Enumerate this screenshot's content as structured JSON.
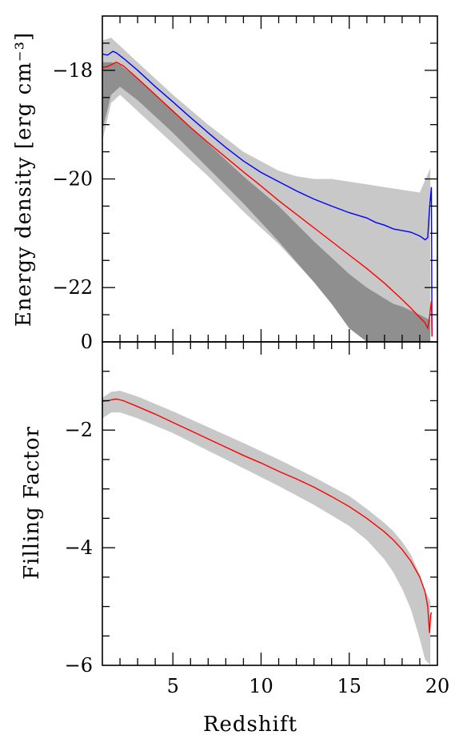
{
  "chart_data": [
    {
      "type": "line",
      "panel": "top",
      "xlabel": "Redshift",
      "ylabel": "Energy density [erg cm⁻³]",
      "xlim": [
        1.0,
        20.0
      ],
      "ylim": [
        -23.0,
        -17.0
      ],
      "yticks": [
        -18,
        -20,
        -22
      ],
      "yticks_labels": [
        "−18",
        "−20",
        "−22"
      ],
      "bottom_edge_label": "0",
      "grid": false,
      "legend": "none",
      "bands": [
        {
          "color": "#c8c8c8",
          "x": [
            1.0,
            1.5,
            2.0,
            3.0,
            5.0,
            7.0,
            9.0,
            11.0,
            12.0,
            13.0,
            14.0,
            15.0,
            16.0,
            17.0,
            18.0,
            19.0,
            19.6
          ],
          "upper": [
            -17.45,
            -17.4,
            -17.55,
            -17.85,
            -18.45,
            -19.0,
            -19.5,
            -19.85,
            -19.95,
            -20.0,
            -20.0,
            -20.05,
            -20.1,
            -20.15,
            -20.2,
            -20.25,
            -19.8
          ],
          "lower": [
            -19.3,
            -18.6,
            -18.45,
            -18.75,
            -19.35,
            -19.95,
            -20.6,
            -21.2,
            -21.55,
            -21.9,
            -22.15,
            -22.45,
            -22.7,
            -22.95,
            -23.0,
            -23.0,
            -23.0
          ]
        },
        {
          "color": "#8f8f8f",
          "x": [
            1.0,
            1.5,
            2.0,
            3.0,
            5.0,
            7.0,
            9.0,
            11.0,
            13.0,
            14.0,
            15.0,
            16.0,
            17.0,
            17.5,
            18.0,
            19.0,
            19.6
          ],
          "upper": [
            -17.85,
            -17.85,
            -17.9,
            -18.15,
            -18.75,
            -19.35,
            -19.95,
            -20.5,
            -21.15,
            -21.45,
            -21.75,
            -22.0,
            -22.2,
            -22.3,
            -22.35,
            -22.5,
            -22.6
          ],
          "lower": [
            -19.1,
            -18.45,
            -18.3,
            -18.55,
            -19.15,
            -19.8,
            -20.45,
            -21.15,
            -21.9,
            -22.3,
            -22.75,
            -23.0,
            -23.0,
            -23.0,
            -23.0,
            -23.0,
            -23.0
          ]
        }
      ],
      "series": [
        {
          "color": "#0000ff",
          "x": [
            1.0,
            1.3,
            1.6,
            1.8,
            2.2,
            3.0,
            4.0,
            5.0,
            6.0,
            7.0,
            8.0,
            9.0,
            10.0,
            11.0,
            12.0,
            13.0,
            14.0,
            15.0,
            16.0,
            16.5,
            17.0,
            17.5,
            18.0,
            18.5,
            19.0,
            19.3,
            19.45,
            19.55,
            19.62,
            19.66,
            19.69
          ],
          "y": [
            -17.7,
            -17.72,
            -17.65,
            -17.68,
            -17.78,
            -18.0,
            -18.3,
            -18.58,
            -18.87,
            -19.15,
            -19.42,
            -19.67,
            -19.88,
            -20.05,
            -20.22,
            -20.37,
            -20.5,
            -20.62,
            -20.72,
            -20.8,
            -20.85,
            -20.92,
            -20.95,
            -20.98,
            -21.05,
            -21.12,
            -21.08,
            -20.55,
            -20.3,
            -20.15,
            -22.9
          ]
        },
        {
          "color": "#ff0000",
          "x": [
            1.0,
            1.3,
            1.6,
            1.8,
            2.2,
            3.0,
            4.0,
            5.0,
            6.0,
            7.0,
            8.0,
            9.0,
            10.0,
            11.0,
            12.0,
            13.0,
            14.0,
            15.0,
            16.0,
            17.0,
            18.0,
            18.5,
            19.0,
            19.3,
            19.45,
            19.55,
            19.62,
            19.66,
            19.69
          ],
          "y": [
            -17.95,
            -17.93,
            -17.88,
            -17.85,
            -17.92,
            -18.15,
            -18.45,
            -18.75,
            -19.05,
            -19.33,
            -19.6,
            -19.87,
            -20.13,
            -20.4,
            -20.65,
            -20.9,
            -21.15,
            -21.4,
            -21.65,
            -21.92,
            -22.22,
            -22.38,
            -22.55,
            -22.65,
            -22.75,
            -22.55,
            -22.35,
            -22.25,
            -22.9
          ]
        }
      ]
    },
    {
      "type": "line",
      "panel": "bottom",
      "xlabel": "Redshift",
      "ylabel": "Filling Factor",
      "xlim": [
        1.0,
        20.0
      ],
      "ylim": [
        -6.0,
        -0.5
      ],
      "xticks": [
        5,
        10,
        15,
        20
      ],
      "xticks_labels": [
        "5",
        "10",
        "15",
        "20"
      ],
      "yticks": [
        -2,
        -4,
        -6
      ],
      "yticks_labels": [
        "−2",
        "−4",
        "−6"
      ],
      "grid": false,
      "legend": "none",
      "bands": [
        {
          "color": "#c8c8c8",
          "x": [
            1.0,
            1.5,
            2.0,
            3.0,
            5.0,
            7.0,
            9.0,
            11.0,
            13.0,
            15.0,
            16.0,
            17.0,
            17.5,
            18.0,
            18.5,
            19.0,
            19.3,
            19.6
          ],
          "upper": [
            -1.45,
            -1.35,
            -1.33,
            -1.43,
            -1.68,
            -1.95,
            -2.22,
            -2.5,
            -2.8,
            -3.12,
            -3.34,
            -3.58,
            -3.72,
            -3.9,
            -4.12,
            -4.45,
            -4.75,
            -4.9
          ],
          "lower": [
            -1.8,
            -1.7,
            -1.7,
            -1.8,
            -2.05,
            -2.35,
            -2.65,
            -2.95,
            -3.27,
            -3.63,
            -3.87,
            -4.2,
            -4.42,
            -4.7,
            -5.05,
            -5.55,
            -5.9,
            -6.0
          ]
        }
      ],
      "series": [
        {
          "color": "#ff0000",
          "x": [
            1.0,
            1.3,
            1.6,
            1.8,
            2.2,
            3.0,
            4.0,
            5.0,
            6.0,
            7.0,
            8.0,
            9.0,
            10.0,
            11.0,
            12.0,
            13.0,
            14.0,
            15.0,
            16.0,
            17.0,
            17.5,
            18.0,
            18.5,
            19.0,
            19.3,
            19.45,
            19.55,
            19.62,
            19.66
          ],
          "y": [
            -1.51,
            -1.5,
            -1.48,
            -1.47,
            -1.5,
            -1.6,
            -1.73,
            -1.87,
            -2.01,
            -2.15,
            -2.29,
            -2.43,
            -2.56,
            -2.7,
            -2.83,
            -2.97,
            -3.13,
            -3.3,
            -3.5,
            -3.73,
            -3.87,
            -4.03,
            -4.23,
            -4.5,
            -4.75,
            -5.0,
            -5.45,
            -5.15,
            -5.1
          ]
        }
      ]
    }
  ]
}
